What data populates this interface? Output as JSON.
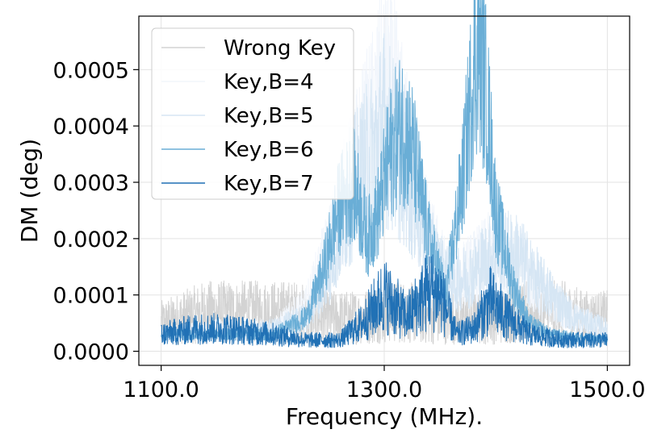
{
  "chart_data": {
    "type": "line",
    "title": "",
    "xlabel": "Frequency (MHz).",
    "ylabel": "DM (deg)",
    "xlim": [
      1080,
      1520
    ],
    "ylim": [
      -2.5e-05,
      0.000595
    ],
    "xticks": [
      1100,
      1300,
      1500
    ],
    "xtick_labels": [
      "1100.0",
      "1300.0",
      "1500.0"
    ],
    "yticks": [
      0,
      0.0001,
      0.0002,
      0.0003,
      0.0004,
      0.0005
    ],
    "ytick_labels": [
      "0.0000",
      "0.0001",
      "0.0002",
      "0.0003",
      "0.0004",
      "0.0005"
    ],
    "grid": true,
    "legend_position": "top-left",
    "series": [
      {
        "name": "Wrong Key",
        "color": "#d3d3d3",
        "x": [
          1100,
          1120,
          1140,
          1160,
          1180,
          1200,
          1220,
          1240,
          1260,
          1280,
          1300,
          1320,
          1340,
          1360,
          1380,
          1400,
          1420,
          1440,
          1460,
          1480,
          1500
        ],
        "y": [
          5e-05,
          6e-05,
          7e-05,
          7e-05,
          7e-05,
          7e-05,
          7e-05,
          6e-05,
          6e-05,
          6e-05,
          7e-05,
          7e-05,
          6e-05,
          6e-05,
          6e-05,
          6e-05,
          7e-05,
          7e-05,
          7e-05,
          6e-05,
          6e-05
        ]
      },
      {
        "name": "Key,B=4",
        "color": "#f2f6fc",
        "x": [
          1100,
          1150,
          1200,
          1230,
          1250,
          1270,
          1290,
          1300,
          1310,
          1320,
          1340,
          1360,
          1380,
          1400,
          1420,
          1440,
          1470,
          1500
        ],
        "y": [
          3e-05,
          4e-05,
          4e-05,
          8e-05,
          0.00018,
          0.0003,
          0.0004,
          0.00046,
          0.00043,
          0.00035,
          0.0002,
          0.00012,
          0.00015,
          0.00018,
          0.00016,
          0.0001,
          6e-05,
          4e-05
        ]
      },
      {
        "name": "Key,B=5",
        "color": "#d6e6f4",
        "x": [
          1100,
          1150,
          1200,
          1230,
          1250,
          1270,
          1290,
          1300,
          1320,
          1340,
          1360,
          1380,
          1400,
          1420,
          1440,
          1470,
          1500
        ],
        "y": [
          3e-05,
          3e-05,
          4e-05,
          6e-05,
          0.00014,
          0.00028,
          0.00035,
          0.0004,
          0.00032,
          0.00018,
          0.00012,
          0.00014,
          0.00018,
          0.00017,
          0.00012,
          6e-05,
          4e-05
        ]
      },
      {
        "name": "Key,B=6",
        "color": "#6aaed6",
        "x": [
          1100,
          1150,
          1200,
          1230,
          1245,
          1260,
          1272,
          1285,
          1295,
          1305,
          1315,
          1325,
          1340,
          1355,
          1370,
          1380,
          1385,
          1392,
          1400,
          1415,
          1430,
          1450,
          1500
        ],
        "y": [
          3e-05,
          3e-05,
          3e-05,
          6e-05,
          0.00014,
          0.00026,
          0.0003,
          0.0002,
          0.00025,
          0.00035,
          0.0004,
          0.00036,
          0.0002,
          0.0001,
          0.0003,
          0.0005,
          0.00054,
          0.00045,
          0.00025,
          0.00012,
          5e-05,
          3e-05,
          2e-05
        ]
      },
      {
        "name": "Key,B=7",
        "color": "#2171b5",
        "x": [
          1100,
          1130,
          1160,
          1200,
          1230,
          1260,
          1280,
          1300,
          1320,
          1340,
          1350,
          1365,
          1380,
          1395,
          1410,
          1430,
          1460,
          1500
        ],
        "y": [
          3e-05,
          4e-05,
          4e-05,
          3e-05,
          2e-05,
          2e-05,
          5e-05,
          0.0001,
          6e-05,
          0.00011,
          0.0001,
          3e-05,
          4e-05,
          9e-05,
          6e-05,
          3e-05,
          2e-05,
          2e-05
        ]
      }
    ]
  }
}
